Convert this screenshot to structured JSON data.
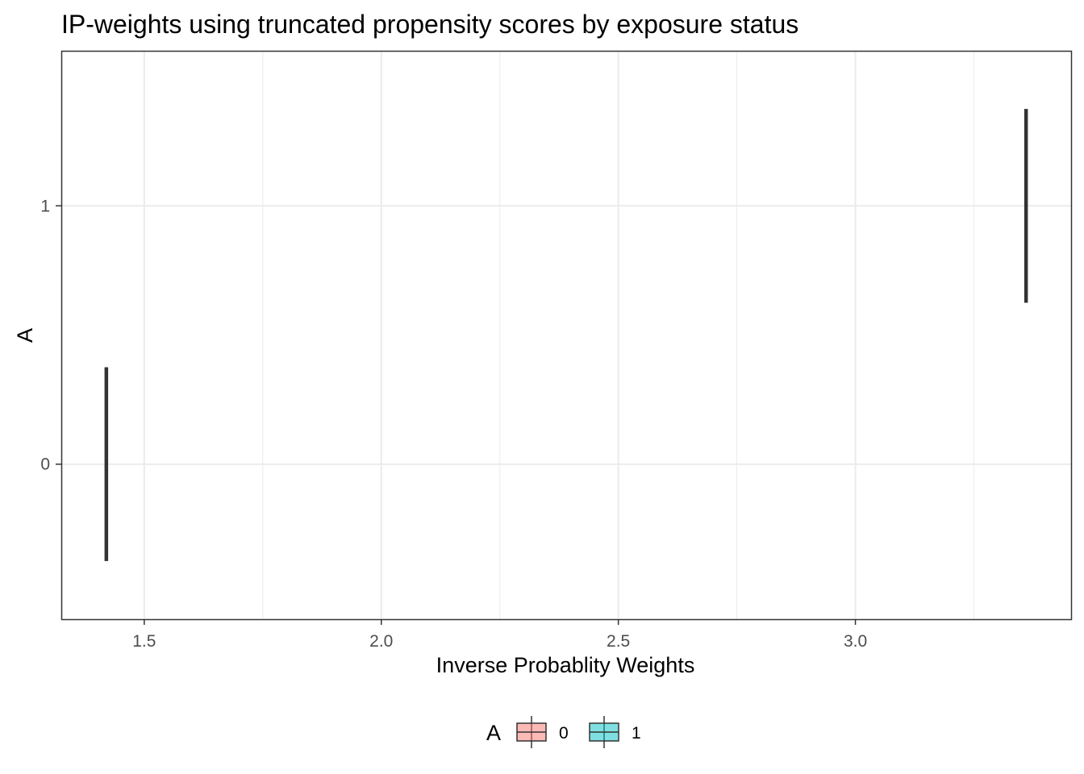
{
  "chart_data": {
    "type": "boxplot",
    "orientation": "horizontal",
    "title": "IP-weights using truncated propensity scores by exposure status",
    "xlabel": "Inverse Probablity Weights",
    "ylabel": "A",
    "xlim": [
      1.325,
      3.455
    ],
    "x_ticks": [
      1.5,
      2.0,
      2.5,
      3.0
    ],
    "x_tick_labels": [
      "1.5",
      "2.0",
      "2.5",
      "3.0"
    ],
    "categories": [
      "0",
      "1"
    ],
    "y_tick_labels": [
      "0",
      "1"
    ],
    "grid": true,
    "legend": {
      "title": "A",
      "position": "bottom",
      "items": [
        {
          "label": "0",
          "color": "#F8766D"
        },
        {
          "label": "1",
          "color": "#00BFC4"
        }
      ]
    },
    "series": [
      {
        "category": "0",
        "min": 1.42,
        "q1": 1.42,
        "median": 1.42,
        "q3": 1.42,
        "max": 1.42,
        "color": "#F8766D"
      },
      {
        "category": "1",
        "min": 3.36,
        "q1": 3.36,
        "median": 3.36,
        "q3": 3.36,
        "max": 3.36,
        "color": "#00BFC4"
      }
    ]
  }
}
